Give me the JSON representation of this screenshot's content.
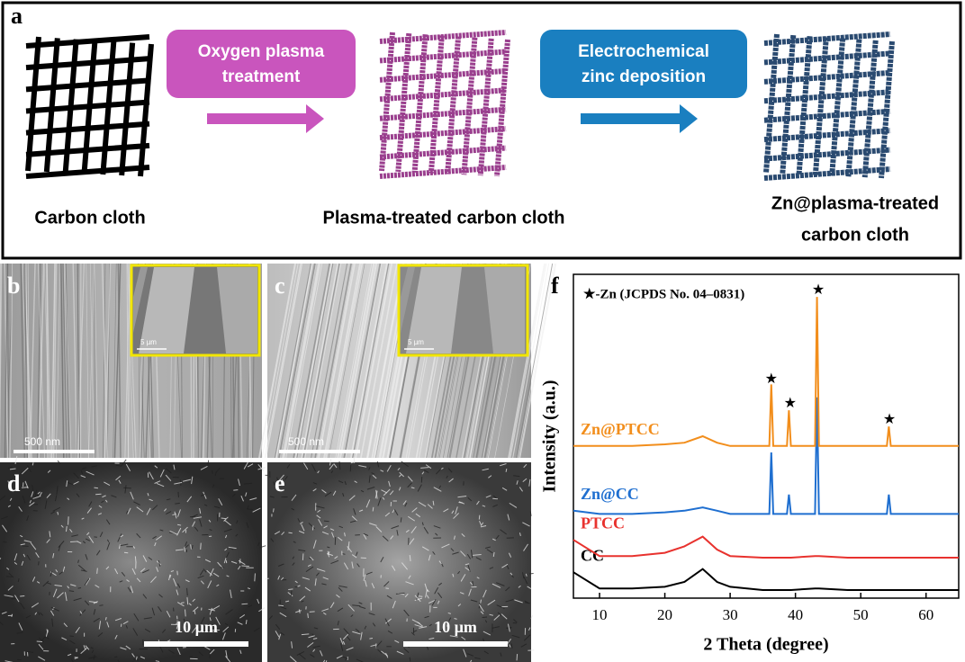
{
  "panel_labels": [
    "a",
    "b",
    "c",
    "d",
    "e",
    "f"
  ],
  "schematic": {
    "step1": [
      "Oxygen plasma",
      "treatment"
    ],
    "step2": [
      "Electrochemical",
      "zinc deposition"
    ],
    "labels": [
      "Carbon cloth",
      "Plasma-treated  carbon cloth"
    ],
    "label3": [
      "Zn@plasma-treated",
      "carbon cloth"
    ]
  },
  "sem": {
    "scale_bars": [
      "500 nm",
      "500 nm",
      "10 µm",
      "10 µm"
    ],
    "inset_scale_bars": [
      "5 µm",
      "5 µm"
    ]
  },
  "chart_data": {
    "type": "line",
    "xlabel": "2 Theta (degree)",
    "ylabel": "Intensity (a.u.)",
    "legend_note": "★-Zn (JCPDS No. 04–0831)",
    "x": [
      6,
      10,
      15,
      20,
      23,
      25.8,
      28,
      30,
      35,
      36,
      36.3,
      36.6,
      38.7,
      39,
      39.3,
      43,
      43.3,
      43.6,
      48,
      54,
      54.3,
      54.6,
      60,
      65
    ],
    "series": [
      {
        "name": "CC",
        "color": "#000000",
        "values": [
          8,
          3,
          3,
          3.5,
          5,
          9,
          5,
          3.5,
          2.5,
          2.5,
          2.5,
          2.5,
          2.5,
          2.5,
          2.5,
          3,
          3,
          3,
          2.5,
          2.5,
          2.5,
          2.5,
          2.5,
          2.5
        ]
      },
      {
        "name": "PTCC",
        "color": "#e8322e",
        "values": [
          18,
          13,
          13,
          14,
          16,
          19,
          15,
          13,
          12.5,
          12.5,
          12.5,
          12.5,
          12.5,
          12.5,
          12.5,
          13,
          13,
          13,
          12.5,
          12.5,
          12.5,
          12.5,
          12.5,
          12.5
        ]
      },
      {
        "name": "Zn@CC",
        "color": "#1f6fd0",
        "values": [
          27,
          26,
          26,
          26.5,
          27,
          28,
          27,
          26,
          26,
          26,
          45,
          26,
          26,
          32,
          26,
          26,
          62,
          26,
          26,
          26,
          32,
          26,
          26,
          26
        ]
      },
      {
        "name": "Zn@PTCC",
        "color": "#f28e1c",
        "values": [
          47,
          47,
          47,
          47.5,
          48,
          50,
          48,
          47,
          47,
          47,
          66,
          47,
          47,
          58,
          47,
          47,
          93,
          47,
          47,
          47,
          53,
          47,
          47,
          47
        ]
      }
    ],
    "annotations": [
      {
        "text": "★",
        "x": 36.3,
        "y": 67.5
      },
      {
        "text": "★",
        "x": 39.2,
        "y": 60
      },
      {
        "text": "★",
        "x": 43.5,
        "y": 95
      },
      {
        "text": "★",
        "x": 54.4,
        "y": 55
      }
    ],
    "xlim": [
      6,
      65
    ],
    "ylim": [
      0,
      100
    ],
    "xticks": [
      10,
      20,
      30,
      40,
      50,
      60
    ],
    "grid": false
  }
}
